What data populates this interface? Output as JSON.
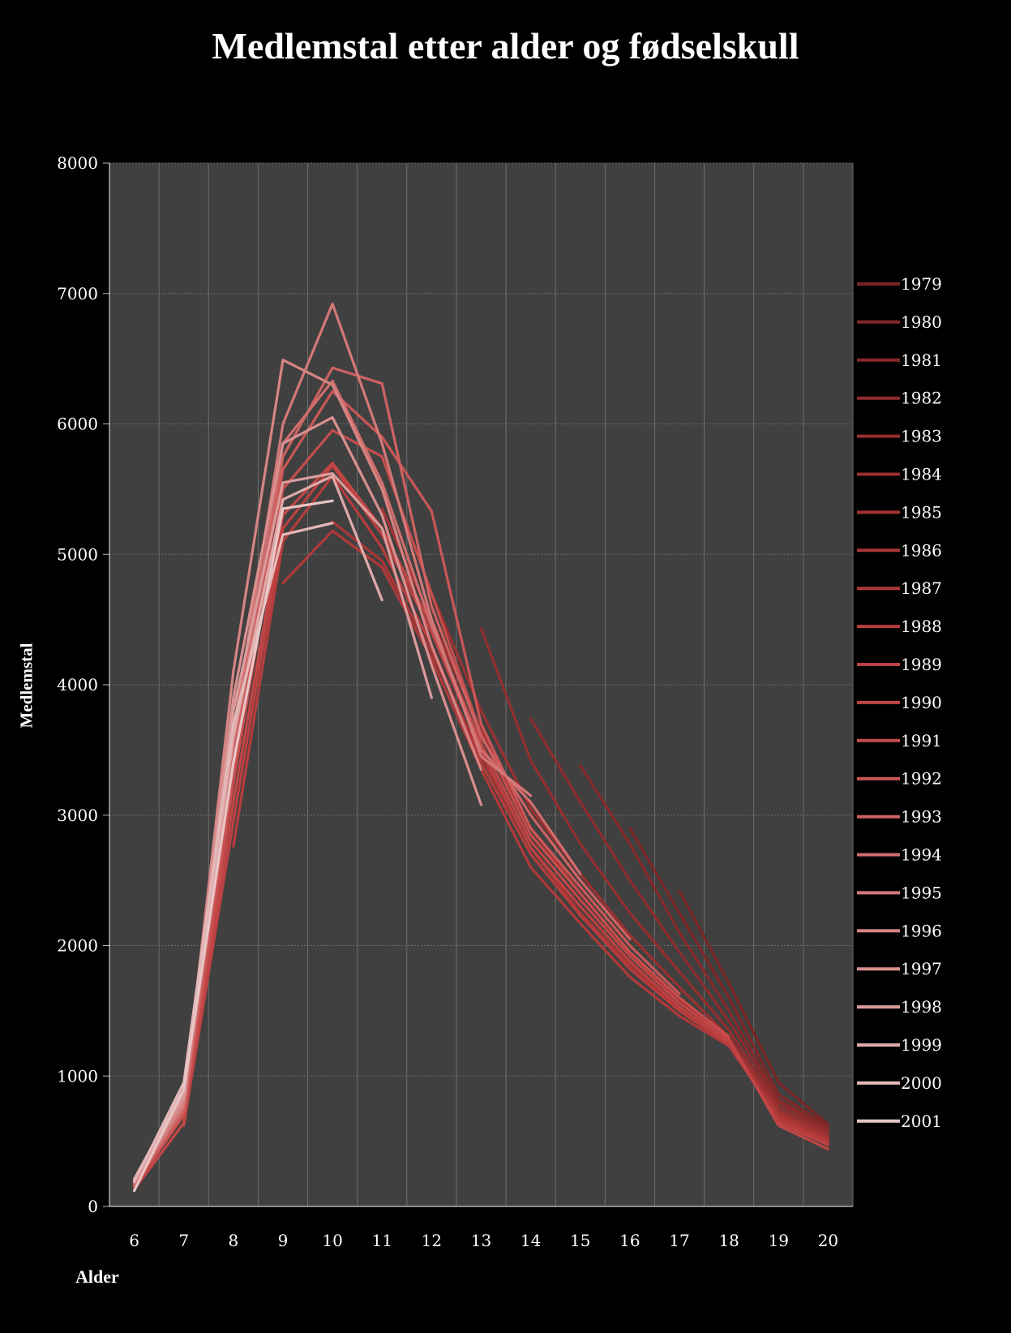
{
  "chart_data": {
    "type": "line",
    "title": "Medlemstal etter alder og fødselskull",
    "xlabel": "Alder",
    "ylabel": "Medlemstal",
    "x": [
      6,
      7,
      8,
      9,
      10,
      11,
      12,
      13,
      14,
      15,
      16,
      17,
      18,
      19,
      20
    ],
    "ylim": [
      0,
      8000
    ],
    "yticks": [
      0,
      1000,
      2000,
      3000,
      4000,
      5000,
      6000,
      7000,
      8000
    ],
    "grid": true,
    "legend_position": "right",
    "series": [
      {
        "name": "1979",
        "color": "#7a2424",
        "points": [
          [
            17,
            2420
          ],
          [
            18,
            1710
          ],
          [
            19,
            950
          ],
          [
            20,
            630
          ]
        ]
      },
      {
        "name": "1980",
        "color": "#802626",
        "points": [
          [
            16,
            2900
          ],
          [
            17,
            2250
          ],
          [
            18,
            1600
          ],
          [
            19,
            860
          ],
          [
            20,
            620
          ]
        ]
      },
      {
        "name": "1981",
        "color": "#872929",
        "points": [
          [
            15,
            3380
          ],
          [
            16,
            2780
          ],
          [
            17,
            2100
          ],
          [
            18,
            1500
          ],
          [
            19,
            820
          ],
          [
            20,
            600
          ]
        ]
      },
      {
        "name": "1982",
        "color": "#8e2b2b",
        "points": [
          [
            14,
            3740
          ],
          [
            15,
            3100
          ],
          [
            16,
            2500
          ],
          [
            17,
            1950
          ],
          [
            18,
            1420
          ],
          [
            19,
            800
          ],
          [
            20,
            580
          ]
        ]
      },
      {
        "name": "1983",
        "color": "#952e2e",
        "points": [
          [
            13,
            4430
          ],
          [
            14,
            3420
          ],
          [
            15,
            2780
          ],
          [
            16,
            2250
          ],
          [
            17,
            1800
          ],
          [
            18,
            1350
          ],
          [
            19,
            770
          ],
          [
            20,
            560
          ]
        ]
      },
      {
        "name": "1984",
        "color": "#9c3030",
        "points": [
          [
            12,
            4700
          ],
          [
            13,
            3800
          ],
          [
            14,
            3050
          ],
          [
            15,
            2550
          ],
          [
            16,
            2080
          ],
          [
            17,
            1680
          ],
          [
            18,
            1300
          ],
          [
            19,
            740
          ],
          [
            20,
            540
          ]
        ]
      },
      {
        "name": "1985",
        "color": "#a33333",
        "points": [
          [
            11,
            5350
          ],
          [
            12,
            4500
          ],
          [
            13,
            3650
          ],
          [
            14,
            2900
          ],
          [
            15,
            2400
          ],
          [
            16,
            1950
          ],
          [
            17,
            1580
          ],
          [
            18,
            1270
          ],
          [
            19,
            720
          ],
          [
            20,
            530
          ]
        ]
      },
      {
        "name": "1986",
        "color": "#aa3636",
        "points": [
          [
            10,
            5250
          ],
          [
            11,
            4950
          ],
          [
            12,
            4250
          ],
          [
            13,
            3450
          ],
          [
            14,
            2750
          ],
          [
            15,
            2250
          ],
          [
            16,
            1850
          ],
          [
            17,
            1520
          ],
          [
            18,
            1250
          ],
          [
            19,
            700
          ],
          [
            20,
            510
          ]
        ]
      },
      {
        "name": "1987",
        "color": "#b13939",
        "points": [
          [
            9,
            4780
          ],
          [
            10,
            5180
          ],
          [
            11,
            4900
          ],
          [
            12,
            4200
          ],
          [
            13,
            3350
          ],
          [
            14,
            2600
          ],
          [
            15,
            2170
          ],
          [
            16,
            1760
          ],
          [
            17,
            1460
          ],
          [
            18,
            1230
          ],
          [
            19,
            680
          ],
          [
            20,
            500
          ]
        ]
      },
      {
        "name": "1988",
        "color": "#b73c3c",
        "points": [
          [
            8,
            2760
          ],
          [
            9,
            5100
          ],
          [
            10,
            5600
          ],
          [
            11,
            5050
          ],
          [
            12,
            4300
          ],
          [
            13,
            3400
          ],
          [
            14,
            2700
          ],
          [
            15,
            2230
          ],
          [
            16,
            1820
          ],
          [
            17,
            1500
          ],
          [
            18,
            1240
          ],
          [
            19,
            660
          ],
          [
            20,
            490
          ]
        ]
      },
      {
        "name": "1989",
        "color": "#bd4141",
        "points": [
          [
            7,
            620
          ],
          [
            8,
            2950
          ],
          [
            9,
            5200
          ],
          [
            10,
            5680
          ],
          [
            11,
            5150
          ],
          [
            12,
            4400
          ],
          [
            13,
            3500
          ],
          [
            14,
            2750
          ],
          [
            15,
            2300
          ],
          [
            16,
            1880
          ],
          [
            17,
            1530
          ],
          [
            18,
            1260
          ],
          [
            19,
            640
          ],
          [
            20,
            470
          ]
        ]
      },
      {
        "name": "1990",
        "color": "#c24646",
        "points": [
          [
            6,
            130
          ],
          [
            7,
            640
          ],
          [
            8,
            3100
          ],
          [
            9,
            5300
          ],
          [
            10,
            5700
          ],
          [
            11,
            5200
          ],
          [
            12,
            4450
          ],
          [
            13,
            3550
          ],
          [
            14,
            2800
          ],
          [
            15,
            2350
          ],
          [
            16,
            1920
          ],
          [
            17,
            1560
          ],
          [
            18,
            1280
          ],
          [
            19,
            620
          ],
          [
            20,
            440
          ]
        ]
      },
      {
        "name": "1991",
        "color": "#c64d4d",
        "points": [
          [
            6,
            150
          ],
          [
            7,
            700
          ],
          [
            8,
            3250
          ],
          [
            9,
            5500
          ],
          [
            10,
            5950
          ],
          [
            11,
            5750
          ],
          [
            12,
            4700
          ],
          [
            13,
            3620
          ],
          [
            14,
            2850
          ],
          [
            15,
            2400
          ],
          [
            16,
            1950
          ],
          [
            17,
            1600
          ],
          [
            18,
            1300
          ]
        ]
      },
      {
        "name": "1992",
        "color": "#ca5757",
        "points": [
          [
            6,
            160
          ],
          [
            7,
            720
          ],
          [
            8,
            3350
          ],
          [
            9,
            5650
          ],
          [
            10,
            6250
          ],
          [
            11,
            5900
          ],
          [
            12,
            5330
          ],
          [
            13,
            3700
          ],
          [
            14,
            2900
          ],
          [
            15,
            2450
          ],
          [
            16,
            2000
          ],
          [
            17,
            1630
          ]
        ]
      },
      {
        "name": "1993",
        "color": "#cd6262",
        "points": [
          [
            6,
            170
          ],
          [
            7,
            740
          ],
          [
            8,
            3450
          ],
          [
            9,
            5750
          ],
          [
            10,
            6430
          ],
          [
            11,
            6310
          ],
          [
            12,
            4600
          ],
          [
            13,
            3600
          ],
          [
            14,
            3000
          ],
          [
            15,
            2500
          ],
          [
            16,
            2050
          ]
        ]
      },
      {
        "name": "1994",
        "color": "#d06d6d",
        "points": [
          [
            6,
            175
          ],
          [
            7,
            760
          ],
          [
            8,
            3550
          ],
          [
            9,
            5850
          ],
          [
            10,
            6330
          ],
          [
            11,
            5550
          ],
          [
            12,
            4450
          ],
          [
            13,
            3500
          ],
          [
            14,
            3100
          ],
          [
            15,
            2550
          ]
        ]
      },
      {
        "name": "1995",
        "color": "#d37878",
        "points": [
          [
            6,
            180
          ],
          [
            7,
            780
          ],
          [
            8,
            3650
          ],
          [
            9,
            6000
          ],
          [
            10,
            6920
          ],
          [
            11,
            5850
          ],
          [
            12,
            4500
          ],
          [
            13,
            3450
          ],
          [
            14,
            3150
          ]
        ]
      },
      {
        "name": "1996",
        "color": "#d68484",
        "points": [
          [
            6,
            190
          ],
          [
            7,
            800
          ],
          [
            8,
            4100
          ],
          [
            9,
            6490
          ],
          [
            10,
            6300
          ],
          [
            11,
            5500
          ],
          [
            12,
            4300
          ],
          [
            13,
            3350
          ]
        ]
      },
      {
        "name": "1997",
        "color": "#d99090",
        "points": [
          [
            6,
            195
          ],
          [
            7,
            830
          ],
          [
            8,
            3900
          ],
          [
            9,
            5850
          ],
          [
            10,
            6050
          ],
          [
            11,
            5300
          ],
          [
            12,
            4150
          ],
          [
            13,
            3080
          ]
        ]
      },
      {
        "name": "1998",
        "color": "#dc9c9c",
        "points": [
          [
            6,
            200
          ],
          [
            7,
            860
          ],
          [
            8,
            3800
          ],
          [
            9,
            5550
          ],
          [
            10,
            5620
          ],
          [
            11,
            5200
          ],
          [
            12,
            3900
          ]
        ]
      },
      {
        "name": "1999",
        "color": "#e0aaaa",
        "points": [
          [
            6,
            210
          ],
          [
            7,
            900
          ],
          [
            8,
            3600
          ],
          [
            9,
            5420
          ],
          [
            10,
            5600
          ],
          [
            11,
            4650
          ]
        ]
      },
      {
        "name": "2000",
        "color": "#e4b8b8",
        "points": [
          [
            6,
            190
          ],
          [
            7,
            950
          ],
          [
            8,
            3700
          ],
          [
            9,
            5150
          ],
          [
            10,
            5240
          ]
        ]
      },
      {
        "name": "2001",
        "color": "#e8c6c6",
        "points": [
          [
            6,
            120
          ],
          [
            7,
            900
          ],
          [
            8,
            3400
          ],
          [
            9,
            5350
          ],
          [
            10,
            5410
          ]
        ]
      }
    ]
  }
}
